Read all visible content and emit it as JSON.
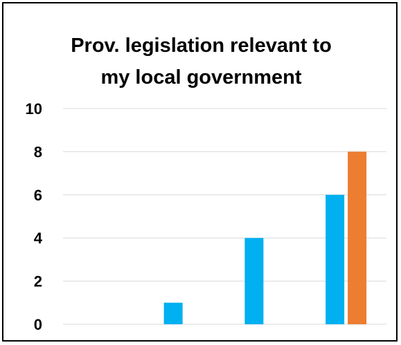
{
  "chart_data": {
    "type": "bar",
    "title": "Prov. legislation relevant to my local government",
    "title_lines": [
      "Prov. legislation relevant to",
      "my local government"
    ],
    "categories": [
      "",
      "",
      "",
      ""
    ],
    "series": [
      {
        "values": [
          0,
          1,
          4,
          6
        ],
        "color": "#00B0F0"
      },
      {
        "values": [
          0,
          0,
          0,
          8
        ],
        "color": "#ED7D31"
      }
    ],
    "ylim": [
      0,
      10
    ],
    "yticks": [
      0,
      2,
      4,
      6,
      8,
      10
    ],
    "grid": true,
    "gridline_color": "#D9D9D9"
  }
}
